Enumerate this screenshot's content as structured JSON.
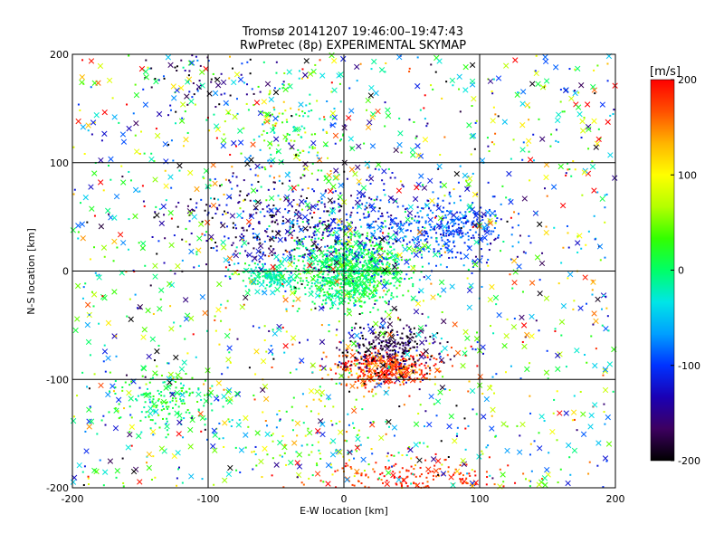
{
  "chart_data": {
    "type": "scatter",
    "title": "Tromsø 20141207 19:46:00–19:47:43",
    "subtitle": "RwPretec (8p) EXPERIMENTAL SKYMAP",
    "xlabel": "E-W location [km]",
    "ylabel": "N-S location [km]",
    "xlim": [
      -200,
      200
    ],
    "ylim": [
      -200,
      200
    ],
    "xticks": [
      -200,
      -100,
      0,
      100,
      200
    ],
    "yticks": [
      -200,
      -100,
      0,
      100,
      200
    ],
    "grid": true,
    "marker_styles": [
      "dot",
      "cross"
    ],
    "colorbar": {
      "label": "[m/s]",
      "min": -200,
      "max": 200,
      "ticks": [
        200,
        100,
        0,
        -100,
        -200
      ],
      "colormap": [
        "#000000",
        "#3d0060",
        "#1a00b4",
        "#0032ff",
        "#00a0ff",
        "#00e6e6",
        "#00ff66",
        "#33ff00",
        "#b4ff00",
        "#ffff00",
        "#ffb400",
        "#ff5000",
        "#ff0000"
      ]
    },
    "clusters": [
      {
        "center": [
          5,
          0
        ],
        "spread": [
          20,
          18
        ],
        "count": 900,
        "velocity": 5,
        "velocity_sd": 20
      },
      {
        "center": [
          -55,
          -5
        ],
        "spread": [
          10,
          6
        ],
        "count": 160,
        "velocity": -15,
        "velocity_sd": 15
      },
      {
        "center": [
          10,
          40
        ],
        "spread": [
          40,
          25
        ],
        "count": 380,
        "velocity": -110,
        "velocity_sd": 30
      },
      {
        "center": [
          -60,
          45
        ],
        "spread": [
          35,
          22
        ],
        "count": 260,
        "velocity": -150,
        "velocity_sd": 40
      },
      {
        "center": [
          80,
          38
        ],
        "spread": [
          20,
          15
        ],
        "count": 280,
        "velocity": -95,
        "velocity_sd": 20
      },
      {
        "center": [
          30,
          -90
        ],
        "spread": [
          20,
          8
        ],
        "count": 380,
        "velocity": 175,
        "velocity_sd": 30
      },
      {
        "center": [
          35,
          -70
        ],
        "spread": [
          20,
          14
        ],
        "count": 280,
        "velocity": -175,
        "velocity_sd": 30
      },
      {
        "center": [
          -130,
          -120
        ],
        "spread": [
          20,
          15
        ],
        "count": 170,
        "velocity": 10,
        "velocity_sd": 25
      },
      {
        "center": [
          -40,
          135
        ],
        "spread": [
          15,
          30
        ],
        "count": 140,
        "velocity": 20,
        "velocity_sd": 50
      },
      {
        "center": [
          -100,
          180
        ],
        "spread": [
          25,
          15
        ],
        "count": 80,
        "velocity": -150,
        "velocity_sd": 60
      },
      {
        "center": [
          45,
          -190
        ],
        "spread": [
          35,
          8
        ],
        "count": 170,
        "velocity": 180,
        "velocity_sd": 20
      },
      {
        "center": [
          -20,
          -150
        ],
        "spread": [
          30,
          25
        ],
        "count": 120,
        "velocity": 40,
        "velocity_sd": 70
      },
      {
        "center": [
          0,
          0
        ],
        "spread": [
          200,
          200
        ],
        "count": 1500,
        "velocity": 0,
        "velocity_sd": 110,
        "uniform": true
      }
    ]
  }
}
